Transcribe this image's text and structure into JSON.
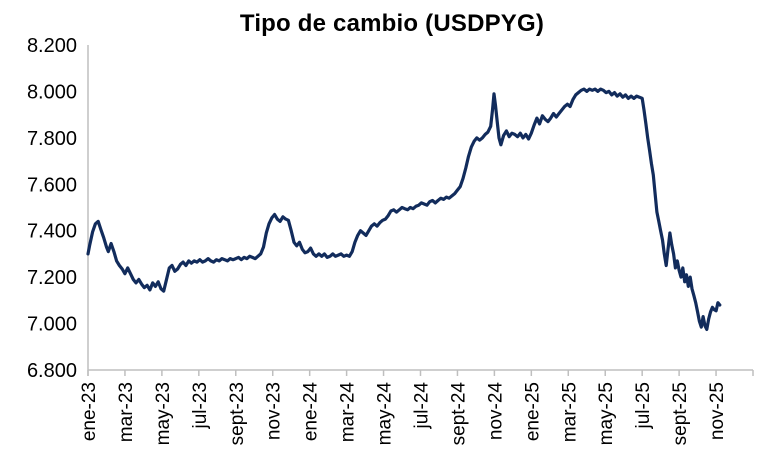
{
  "chart_data": {
    "type": "line",
    "title": "Tipo de cambio (USDPYG)",
    "grid": "off",
    "legend": "none",
    "colors": {
      "line": "#122C5C",
      "axis": "#BFBFBF",
      "text": "#000000",
      "background": "#FFFFFF"
    },
    "y_axis": {
      "min": 6800,
      "max": 8200,
      "step": 200,
      "tick_labels": [
        "6.800",
        "7.000",
        "7.200",
        "7.400",
        "7.600",
        "7.800",
        "8.000",
        "8.200"
      ]
    },
    "x_axis": {
      "unit": "months-since-ene-23",
      "domain_months": [
        0,
        36
      ],
      "tick_month_positions": [
        0,
        2,
        4,
        6,
        8,
        10,
        12,
        14,
        16,
        18,
        20,
        22,
        24,
        26,
        28,
        30,
        32,
        34
      ],
      "tick_labels": [
        "ene-23",
        "mar-23",
        "may-23",
        "jul-23",
        "sept-23",
        "nov-23",
        "ene-24",
        "mar-24",
        "may-24",
        "jul-24",
        "sept-24",
        "nov-24",
        "ene-25",
        "mar-25",
        "may-25",
        "jul-25",
        "sept-25",
        "nov-25"
      ],
      "label_rotation_deg": -90
    },
    "series": [
      {
        "name": "USDPYG",
        "points": [
          [
            0,
            7300
          ],
          [
            0.1,
            7340
          ],
          [
            0.25,
            7395
          ],
          [
            0.4,
            7430
          ],
          [
            0.55,
            7440
          ],
          [
            0.7,
            7405
          ],
          [
            0.85,
            7370
          ],
          [
            1,
            7330
          ],
          [
            1.1,
            7310
          ],
          [
            1.25,
            7345
          ],
          [
            1.4,
            7310
          ],
          [
            1.55,
            7270
          ],
          [
            1.7,
            7250
          ],
          [
            1.85,
            7235
          ],
          [
            2,
            7215
          ],
          [
            2.15,
            7240
          ],
          [
            2.3,
            7215
          ],
          [
            2.45,
            7190
          ],
          [
            2.6,
            7175
          ],
          [
            2.75,
            7190
          ],
          [
            2.9,
            7170
          ],
          [
            3.05,
            7155
          ],
          [
            3.2,
            7165
          ],
          [
            3.35,
            7145
          ],
          [
            3.5,
            7175
          ],
          [
            3.65,
            7160
          ],
          [
            3.8,
            7180
          ],
          [
            3.95,
            7150
          ],
          [
            4.1,
            7140
          ],
          [
            4.25,
            7190
          ],
          [
            4.4,
            7240
          ],
          [
            4.55,
            7250
          ],
          [
            4.7,
            7225
          ],
          [
            4.85,
            7235
          ],
          [
            5,
            7255
          ],
          [
            5.15,
            7265
          ],
          [
            5.3,
            7250
          ],
          [
            5.45,
            7270
          ],
          [
            5.6,
            7260
          ],
          [
            5.75,
            7270
          ],
          [
            5.9,
            7265
          ],
          [
            6.05,
            7275
          ],
          [
            6.2,
            7265
          ],
          [
            6.35,
            7270
          ],
          [
            6.5,
            7280
          ],
          [
            6.65,
            7270
          ],
          [
            6.8,
            7265
          ],
          [
            6.95,
            7275
          ],
          [
            7.1,
            7270
          ],
          [
            7.25,
            7280
          ],
          [
            7.4,
            7275
          ],
          [
            7.55,
            7270
          ],
          [
            7.7,
            7280
          ],
          [
            7.85,
            7275
          ],
          [
            8,
            7280
          ],
          [
            8.15,
            7285
          ],
          [
            8.3,
            7275
          ],
          [
            8.45,
            7285
          ],
          [
            8.6,
            7280
          ],
          [
            8.75,
            7290
          ],
          [
            8.9,
            7285
          ],
          [
            9.05,
            7280
          ],
          [
            9.2,
            7290
          ],
          [
            9.35,
            7300
          ],
          [
            9.5,
            7330
          ],
          [
            9.65,
            7390
          ],
          [
            9.8,
            7430
          ],
          [
            9.95,
            7455
          ],
          [
            10.1,
            7470
          ],
          [
            10.25,
            7450
          ],
          [
            10.4,
            7440
          ],
          [
            10.55,
            7460
          ],
          [
            10.7,
            7450
          ],
          [
            10.85,
            7445
          ],
          [
            11,
            7400
          ],
          [
            11.15,
            7350
          ],
          [
            11.3,
            7335
          ],
          [
            11.45,
            7350
          ],
          [
            11.6,
            7320
          ],
          [
            11.75,
            7305
          ],
          [
            11.9,
            7310
          ],
          [
            12.05,
            7325
          ],
          [
            12.2,
            7300
          ],
          [
            12.35,
            7290
          ],
          [
            12.5,
            7300
          ],
          [
            12.65,
            7290
          ],
          [
            12.8,
            7300
          ],
          [
            12.95,
            7285
          ],
          [
            13.1,
            7290
          ],
          [
            13.25,
            7300
          ],
          [
            13.4,
            7290
          ],
          [
            13.55,
            7295
          ],
          [
            13.7,
            7300
          ],
          [
            13.85,
            7290
          ],
          [
            14,
            7295
          ],
          [
            14.15,
            7290
          ],
          [
            14.3,
            7310
          ],
          [
            14.45,
            7350
          ],
          [
            14.6,
            7380
          ],
          [
            14.75,
            7400
          ],
          [
            14.9,
            7390
          ],
          [
            15.05,
            7380
          ],
          [
            15.2,
            7400
          ],
          [
            15.35,
            7420
          ],
          [
            15.5,
            7430
          ],
          [
            15.65,
            7420
          ],
          [
            15.8,
            7435
          ],
          [
            15.95,
            7445
          ],
          [
            16.1,
            7450
          ],
          [
            16.25,
            7465
          ],
          [
            16.4,
            7485
          ],
          [
            16.55,
            7490
          ],
          [
            16.7,
            7480
          ],
          [
            16.85,
            7490
          ],
          [
            17,
            7500
          ],
          [
            17.15,
            7495
          ],
          [
            17.3,
            7490
          ],
          [
            17.45,
            7500
          ],
          [
            17.6,
            7495
          ],
          [
            17.75,
            7505
          ],
          [
            17.9,
            7510
          ],
          [
            18.05,
            7520
          ],
          [
            18.2,
            7515
          ],
          [
            18.35,
            7510
          ],
          [
            18.5,
            7525
          ],
          [
            18.65,
            7530
          ],
          [
            18.8,
            7520
          ],
          [
            18.95,
            7530
          ],
          [
            19.1,
            7540
          ],
          [
            19.25,
            7535
          ],
          [
            19.4,
            7545
          ],
          [
            19.55,
            7540
          ],
          [
            19.7,
            7550
          ],
          [
            19.85,
            7560
          ],
          [
            20,
            7575
          ],
          [
            20.15,
            7590
          ],
          [
            20.3,
            7625
          ],
          [
            20.45,
            7670
          ],
          [
            20.6,
            7720
          ],
          [
            20.75,
            7760
          ],
          [
            20.9,
            7785
          ],
          [
            21.05,
            7800
          ],
          [
            21.2,
            7790
          ],
          [
            21.35,
            7800
          ],
          [
            21.5,
            7815
          ],
          [
            21.65,
            7825
          ],
          [
            21.8,
            7850
          ],
          [
            21.9,
            7920
          ],
          [
            21.98,
            7990
          ],
          [
            22.06,
            7940
          ],
          [
            22.15,
            7870
          ],
          [
            22.25,
            7800
          ],
          [
            22.35,
            7770
          ],
          [
            22.5,
            7810
          ],
          [
            22.65,
            7830
          ],
          [
            22.8,
            7805
          ],
          [
            22.95,
            7820
          ],
          [
            23.1,
            7815
          ],
          [
            23.25,
            7805
          ],
          [
            23.4,
            7820
          ],
          [
            23.55,
            7800
          ],
          [
            23.7,
            7815
          ],
          [
            23.85,
            7795
          ],
          [
            24,
            7820
          ],
          [
            24.15,
            7855
          ],
          [
            24.3,
            7885
          ],
          [
            24.45,
            7860
          ],
          [
            24.6,
            7895
          ],
          [
            24.75,
            7880
          ],
          [
            24.9,
            7870
          ],
          [
            25.05,
            7885
          ],
          [
            25.2,
            7905
          ],
          [
            25.35,
            7890
          ],
          [
            25.5,
            7905
          ],
          [
            25.65,
            7920
          ],
          [
            25.8,
            7935
          ],
          [
            25.95,
            7945
          ],
          [
            26.1,
            7935
          ],
          [
            26.25,
            7965
          ],
          [
            26.4,
            7985
          ],
          [
            26.55,
            7995
          ],
          [
            26.7,
            8005
          ],
          [
            26.85,
            8010
          ],
          [
            27,
            8000
          ],
          [
            27.15,
            8010
          ],
          [
            27.3,
            8005
          ],
          [
            27.45,
            8010
          ],
          [
            27.6,
            8000
          ],
          [
            27.75,
            8010
          ],
          [
            27.9,
            8005
          ],
          [
            28.05,
            7995
          ],
          [
            28.2,
            8000
          ],
          [
            28.35,
            7985
          ],
          [
            28.5,
            7995
          ],
          [
            28.65,
            7980
          ],
          [
            28.8,
            7990
          ],
          [
            28.95,
            7975
          ],
          [
            29.1,
            7985
          ],
          [
            29.25,
            7970
          ],
          [
            29.4,
            7980
          ],
          [
            29.55,
            7970
          ],
          [
            29.7,
            7980
          ],
          [
            29.85,
            7975
          ],
          [
            30,
            7970
          ],
          [
            30.1,
            7920
          ],
          [
            30.2,
            7860
          ],
          [
            30.3,
            7800
          ],
          [
            30.4,
            7745
          ],
          [
            30.5,
            7690
          ],
          [
            30.6,
            7640
          ],
          [
            30.7,
            7560
          ],
          [
            30.8,
            7480
          ],
          [
            30.9,
            7440
          ],
          [
            31,
            7400
          ],
          [
            31.1,
            7360
          ],
          [
            31.2,
            7300
          ],
          [
            31.3,
            7250
          ],
          [
            31.4,
            7320
          ],
          [
            31.5,
            7390
          ],
          [
            31.6,
            7340
          ],
          [
            31.7,
            7300
          ],
          [
            31.8,
            7240
          ],
          [
            31.9,
            7270
          ],
          [
            32,
            7230
          ],
          [
            32.1,
            7200
          ],
          [
            32.2,
            7240
          ],
          [
            32.3,
            7180
          ],
          [
            32.4,
            7210
          ],
          [
            32.5,
            7160
          ],
          [
            32.6,
            7200
          ],
          [
            32.7,
            7150
          ],
          [
            32.8,
            7120
          ],
          [
            32.9,
            7090
          ],
          [
            33,
            7050
          ],
          [
            33.1,
            7010
          ],
          [
            33.2,
            6985
          ],
          [
            33.3,
            7030
          ],
          [
            33.4,
            6990
          ],
          [
            33.5,
            6975
          ],
          [
            33.6,
            7020
          ],
          [
            33.7,
            7050
          ],
          [
            33.8,
            7070
          ],
          [
            33.9,
            7060
          ],
          [
            34,
            7055
          ],
          [
            34.1,
            7090
          ],
          [
            34.2,
            7080
          ]
        ]
      }
    ]
  }
}
